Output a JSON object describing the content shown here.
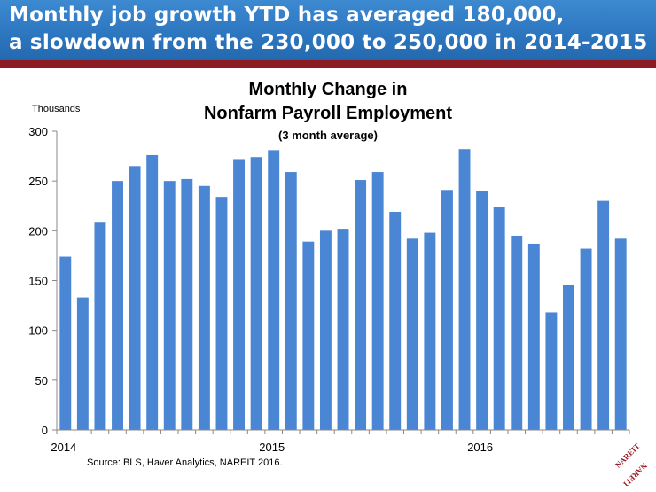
{
  "header": {
    "line1": "Monthly job growth YTD has averaged 180,000,",
    "line2": "a slowdown from the 230,000 to 250,000 in 2014-2015"
  },
  "source": "Source: BLS, Haver Analytics, NAREIT 2016.",
  "logo_text": "NAREIT",
  "colors": {
    "bar": "#4a86d4",
    "banner": "#2d77c0",
    "rule": "#8b1c24"
  },
  "chart_data": {
    "type": "bar",
    "title": "Monthly Change in",
    "title_line2": "Nonfarm Payroll Employment",
    "subtitle": "(3 month average)",
    "ylabel": "Thousands",
    "xlabel": "",
    "ylim": [
      0,
      300
    ],
    "yticks": [
      0,
      50,
      100,
      150,
      200,
      250,
      300
    ],
    "x_labels": [
      {
        "label": "2014",
        "index": 0
      },
      {
        "label": "2015",
        "index": 12
      },
      {
        "label": "2016",
        "index": 24
      }
    ],
    "grid": false,
    "values": [
      174,
      133,
      209,
      250,
      265,
      276,
      250,
      252,
      245,
      234,
      272,
      274,
      281,
      259,
      189,
      200,
      202,
      251,
      259,
      219,
      192,
      198,
      241,
      282,
      240,
      224,
      195,
      187,
      118,
      146,
      182,
      230,
      192
    ]
  }
}
